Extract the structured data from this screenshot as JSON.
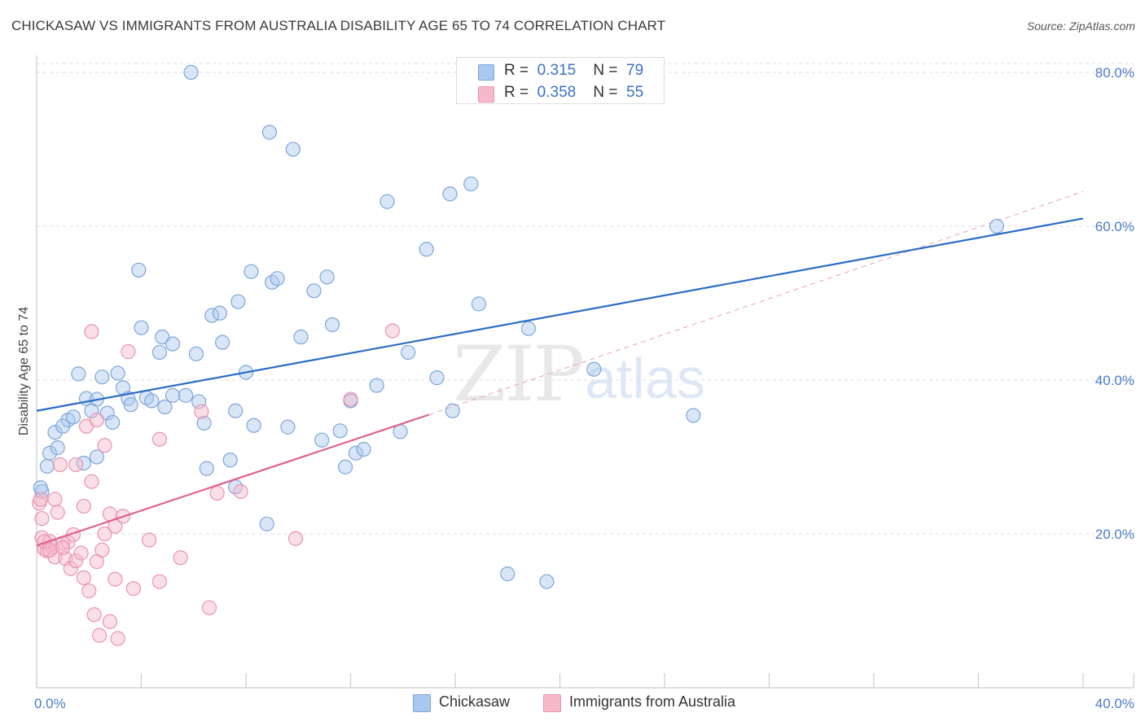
{
  "title": "CHICKASAW VS IMMIGRANTS FROM AUSTRALIA DISABILITY AGE 65 TO 74 CORRELATION CHART",
  "source": "Source: ZipAtlas.com",
  "watermark": {
    "zip": "ZIP",
    "atlas": "atlas"
  },
  "legend": {
    "rows": [
      {
        "r_label": "R =",
        "r_value": "0.315",
        "n_label": "N =",
        "n_value": "79",
        "color": "#a9c8f0"
      },
      {
        "r_label": "R =",
        "r_value": "0.358",
        "n_label": "N =",
        "n_value": "55",
        "color": "#f6b9cb"
      }
    ]
  },
  "bottom_legend": [
    {
      "label": "Chickasaw",
      "color": "#a9c8f0"
    },
    {
      "label": "Immigrants from Australia",
      "color": "#f6b9cb"
    }
  ],
  "chart_data": {
    "type": "scatter",
    "ylabel": "Disability Age 65 to 74",
    "xlim": [
      0,
      40
    ],
    "ylim": [
      0,
      82
    ],
    "x_tick_labels": [
      {
        "value": 0,
        "label": "0.0%"
      },
      {
        "value": 40,
        "label": "40.0%"
      }
    ],
    "y_tick_labels": [
      {
        "value": 20,
        "label": "20.0%"
      },
      {
        "value": 40,
        "label": "40.0%"
      },
      {
        "value": 60,
        "label": "60.0%"
      },
      {
        "value": 80,
        "label": "80.0%"
      }
    ],
    "series": [
      {
        "name": "Chickasaw",
        "color": "#a9c8f0",
        "stroke": "#7ea6d8",
        "trend": {
          "x0": 0,
          "y0": 36,
          "x1": 40,
          "y1": 61,
          "color": "#2b6cc7"
        },
        "points": [
          [
            0.2,
            25.5
          ],
          [
            0.4,
            28.8
          ],
          [
            0.5,
            30.5
          ],
          [
            0.7,
            33.2
          ],
          [
            0.8,
            31.2
          ],
          [
            1.2,
            34.8
          ],
          [
            1.4,
            35.2
          ],
          [
            1.6,
            40.8
          ],
          [
            1.8,
            29.2
          ],
          [
            1.9,
            37.6
          ],
          [
            2.3,
            37.5
          ],
          [
            2.3,
            30.0
          ],
          [
            2.5,
            40.4
          ],
          [
            2.7,
            35.7
          ],
          [
            2.9,
            34.5
          ],
          [
            3.1,
            40.9
          ],
          [
            3.3,
            39.0
          ],
          [
            3.5,
            37.6
          ],
          [
            3.6,
            36.8
          ],
          [
            3.9,
            54.3
          ],
          [
            4.0,
            46.8
          ],
          [
            4.2,
            37.7
          ],
          [
            4.4,
            37.3
          ],
          [
            4.7,
            43.6
          ],
          [
            4.8,
            45.6
          ],
          [
            4.9,
            36.5
          ],
          [
            5.2,
            38.0
          ],
          [
            5.2,
            44.7
          ],
          [
            5.7,
            38.0
          ],
          [
            6.1,
            43.4
          ],
          [
            6.2,
            37.2
          ],
          [
            6.4,
            34.4
          ],
          [
            6.5,
            28.5
          ],
          [
            6.7,
            48.4
          ],
          [
            7.0,
            48.7
          ],
          [
            7.1,
            44.9
          ],
          [
            7.4,
            29.6
          ],
          [
            7.6,
            26.1
          ],
          [
            7.6,
            36.0
          ],
          [
            7.7,
            50.2
          ],
          [
            8.0,
            41.0
          ],
          [
            8.2,
            54.1
          ],
          [
            8.3,
            34.1
          ],
          [
            8.8,
            21.3
          ],
          [
            8.9,
            72.2
          ],
          [
            9.0,
            52.7
          ],
          [
            9.2,
            53.2
          ],
          [
            9.6,
            33.9
          ],
          [
            9.8,
            70.0
          ],
          [
            10.1,
            45.6
          ],
          [
            10.6,
            51.6
          ],
          [
            10.9,
            32.2
          ],
          [
            11.1,
            53.4
          ],
          [
            11.3,
            47.2
          ],
          [
            11.6,
            33.4
          ],
          [
            11.8,
            28.7
          ],
          [
            12.0,
            37.3
          ],
          [
            12.2,
            30.5
          ],
          [
            12.5,
            31.0
          ],
          [
            13.0,
            39.3
          ],
          [
            13.4,
            63.2
          ],
          [
            13.9,
            33.3
          ],
          [
            14.2,
            43.6
          ],
          [
            14.9,
            57.0
          ],
          [
            15.3,
            40.3
          ],
          [
            15.8,
            64.2
          ],
          [
            15.9,
            36.0
          ],
          [
            16.6,
            65.5
          ],
          [
            16.9,
            49.9
          ],
          [
            18.0,
            14.8
          ],
          [
            18.8,
            46.7
          ],
          [
            19.5,
            13.8
          ],
          [
            21.3,
            41.4
          ],
          [
            25.1,
            35.4
          ],
          [
            36.7,
            60.0
          ],
          [
            5.9,
            80.0
          ],
          [
            0.15,
            26.0
          ],
          [
            1.0,
            34.0
          ],
          [
            2.1,
            36.0
          ]
        ]
      },
      {
        "name": "Immigrants from Australia",
        "color": "#f6b9cb",
        "stroke": "#e994ae",
        "trend": {
          "x0": 0,
          "y0": 18.5,
          "x1": 15,
          "y1": 35.5,
          "color": "#e0628d"
        },
        "trend_ext": {
          "x0": 15,
          "y0": 35.5,
          "x1": 40,
          "y1": 64.5
        },
        "points": [
          [
            0.1,
            24.0
          ],
          [
            0.2,
            22.0
          ],
          [
            0.2,
            19.5
          ],
          [
            0.3,
            18.0
          ],
          [
            0.4,
            17.8
          ],
          [
            0.5,
            19.0
          ],
          [
            0.6,
            18.3
          ],
          [
            0.7,
            24.5
          ],
          [
            0.7,
            17.0
          ],
          [
            0.8,
            22.8
          ],
          [
            0.9,
            29.0
          ],
          [
            1.0,
            18.8
          ],
          [
            1.1,
            16.8
          ],
          [
            1.2,
            18.9
          ],
          [
            1.3,
            15.5
          ],
          [
            1.4,
            19.9
          ],
          [
            1.5,
            29.0
          ],
          [
            1.5,
            16.5
          ],
          [
            1.7,
            17.5
          ],
          [
            1.8,
            14.3
          ],
          [
            1.8,
            23.6
          ],
          [
            1.9,
            34.0
          ],
          [
            2.0,
            12.6
          ],
          [
            2.1,
            26.8
          ],
          [
            2.1,
            46.3
          ],
          [
            2.2,
            9.5
          ],
          [
            2.3,
            34.8
          ],
          [
            2.3,
            16.4
          ],
          [
            2.4,
            6.8
          ],
          [
            2.5,
            17.9
          ],
          [
            2.6,
            20.0
          ],
          [
            2.6,
            31.5
          ],
          [
            2.8,
            22.6
          ],
          [
            2.8,
            8.6
          ],
          [
            3.0,
            21.0
          ],
          [
            3.0,
            14.1
          ],
          [
            3.1,
            6.4
          ],
          [
            3.3,
            22.3
          ],
          [
            3.5,
            43.7
          ],
          [
            3.7,
            12.9
          ],
          [
            4.3,
            19.2
          ],
          [
            4.7,
            32.3
          ],
          [
            4.7,
            13.8
          ],
          [
            5.5,
            16.9
          ],
          [
            6.3,
            35.9
          ],
          [
            6.6,
            10.4
          ],
          [
            6.9,
            25.3
          ],
          [
            7.8,
            25.5
          ],
          [
            9.9,
            19.4
          ],
          [
            12.0,
            37.5
          ],
          [
            13.6,
            46.4
          ],
          [
            0.3,
            19.0
          ],
          [
            0.5,
            17.9
          ],
          [
            0.15,
            24.5
          ],
          [
            1.0,
            18.2
          ]
        ]
      }
    ]
  }
}
